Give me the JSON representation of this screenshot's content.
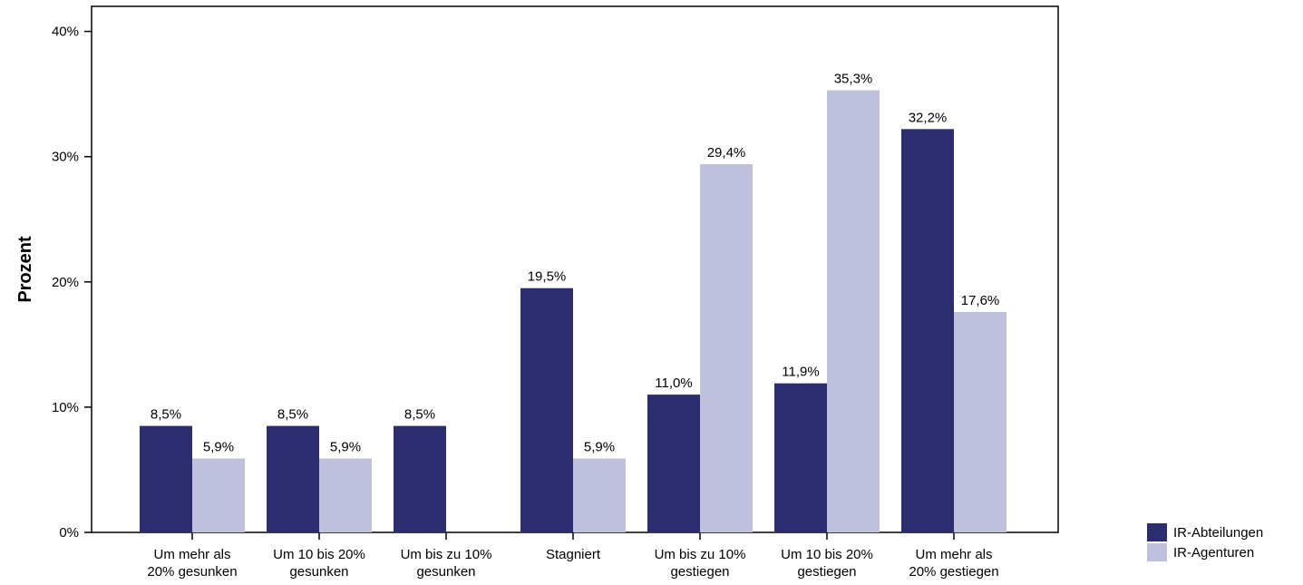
{
  "chart_data": {
    "type": "bar",
    "ylabel": "Prozent",
    "xlabel": "",
    "ylim": [
      0,
      42
    ],
    "y_ticks": [
      {
        "value": 0,
        "label": "0%"
      },
      {
        "value": 10,
        "label": "10%"
      },
      {
        "value": 20,
        "label": "20%"
      },
      {
        "value": 30,
        "label": "30%"
      },
      {
        "value": 40,
        "label": "40%"
      }
    ],
    "categories": [
      [
        "Um mehr als",
        "20% gesunken"
      ],
      [
        "Um 10 bis 20%",
        "gesunken"
      ],
      [
        "Um bis zu 10%",
        "gesunken"
      ],
      [
        "Stagniert"
      ],
      [
        "Um bis zu 10%",
        "gestiegen"
      ],
      [
        "Um 10 bis 20%",
        "gestiegen"
      ],
      [
        "Um mehr als",
        "20% gestiegen"
      ]
    ],
    "series": [
      {
        "name": "IR-Abteilungen",
        "color": "#2b2d6e",
        "values": [
          8.5,
          8.5,
          8.5,
          19.5,
          11.0,
          11.9,
          32.2
        ],
        "labels": [
          "8,5%",
          "8,5%",
          "8,5%",
          "19,5%",
          "11,0%",
          "11,9%",
          "32,2%"
        ]
      },
      {
        "name": "IR-Agenturen",
        "color": "#bfc0de",
        "values": [
          5.9,
          5.9,
          null,
          5.9,
          29.4,
          35.3,
          17.6
        ],
        "labels": [
          "5,9%",
          "5,9%",
          "",
          "5,9%",
          "29,4%",
          "35,3%",
          "17,6%"
        ]
      }
    ],
    "grid": false,
    "legend_position": "bottom-right"
  }
}
